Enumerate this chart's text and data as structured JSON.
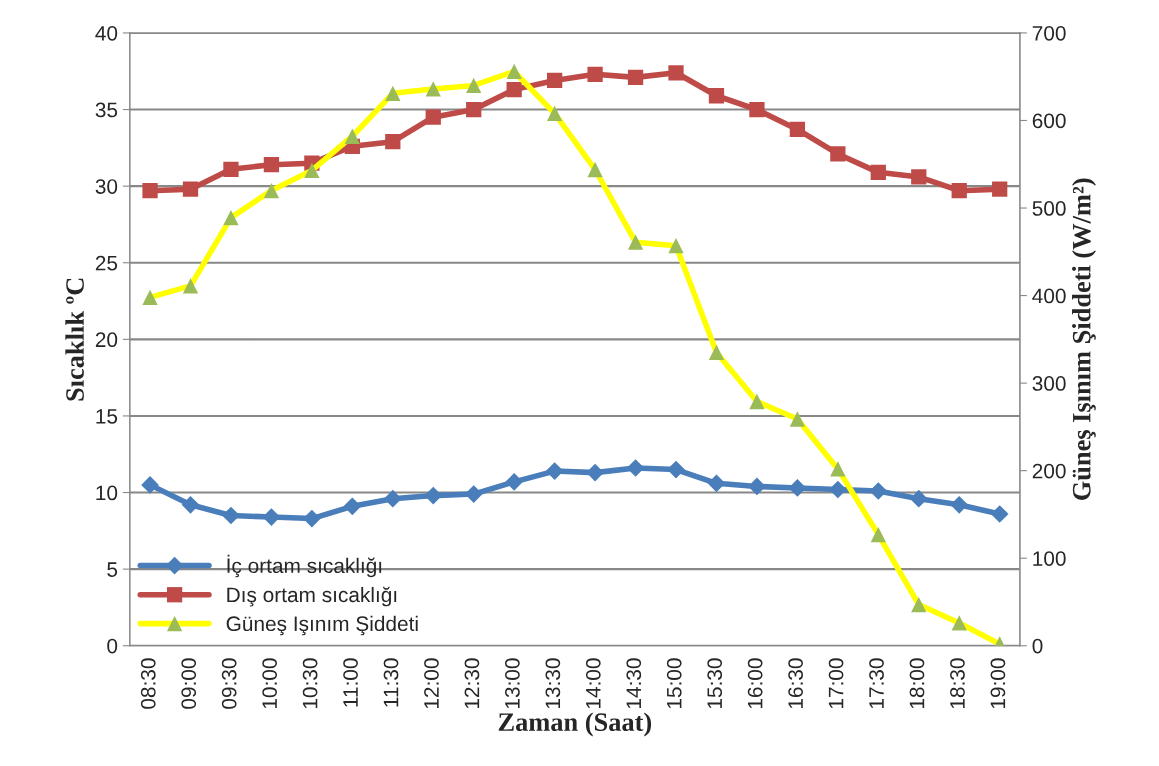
{
  "chart_data": {
    "type": "line",
    "xlabel": "Zaman (Saat)",
    "ylabel": "Sıcaklık ºC",
    "y2label": "Güneş Işınım Şiddeti (W/m²)",
    "categories": [
      "08:30",
      "09:00",
      "09:30",
      "10:00",
      "10:30",
      "11:00",
      "11:30",
      "12:00",
      "12:30",
      "13:00",
      "13:30",
      "14:00",
      "14:30",
      "15:00",
      "15:30",
      "16:00",
      "16:30",
      "17:00",
      "17:30",
      "18:00",
      "18:30",
      "19:00"
    ],
    "series": [
      {
        "name": "İç ortam sıcaklığı",
        "color": "#4a7ebb",
        "marker": "diamond",
        "values": [
          10.5,
          9.2,
          8.5,
          8.4,
          8.3,
          9.1,
          9.6,
          9.8,
          9.9,
          10.7,
          11.4,
          11.3,
          11.6,
          11.5,
          10.6,
          10.4,
          10.3,
          10.2,
          10.1,
          9.6,
          9.2,
          8.6
        ]
      },
      {
        "name": "Dış ortam sıcaklığı",
        "color": "#be4b48",
        "marker": "square",
        "values": [
          29.7,
          29.8,
          31.1,
          31.4,
          31.5,
          32.6,
          32.9,
          34.5,
          35.0,
          36.3,
          36.9,
          37.3,
          37.1,
          37.4,
          35.9,
          35.0,
          33.7,
          32.1,
          30.9,
          30.6,
          29.7,
          29.8
        ]
      },
      {
        "name": "Güneş Işınım Şiddeti",
        "color": "#ffff00",
        "colors": [
          "#9bbb59",
          "#9bbb59",
          "#9bbb59",
          "#9bbb59",
          "#9bbb59",
          "#9bbb59",
          "#9bbb59",
          "#9bbb59",
          "#9bbb59",
          "#9bbb59",
          "#9bbb59",
          "#9bbb59",
          "#9bbb59",
          "#9bbb59",
          "#9bbb59",
          "#9bbb59",
          "#9bbb59",
          "#9bbb59",
          "#9bbb59",
          "#9bbb59",
          "#9bbb59",
          "#9bbb59"
        ],
        "marker": "triangle",
        "axis": "y2",
        "values": [
          398,
          411,
          489,
          520,
          543,
          582,
          631,
          636,
          640,
          656,
          608,
          544,
          461,
          457,
          335,
          279,
          259,
          202,
          127,
          47,
          26,
          2
        ]
      }
    ],
    "ylim": [
      0,
      40
    ],
    "yticks": [
      0,
      5,
      10,
      15,
      20,
      25,
      30,
      35,
      40
    ],
    "y2lim": [
      0,
      700
    ],
    "y2ticks": [
      0,
      100,
      200,
      300,
      400,
      500,
      600,
      700
    ],
    "grid": "y",
    "legend": "bottom left"
  }
}
